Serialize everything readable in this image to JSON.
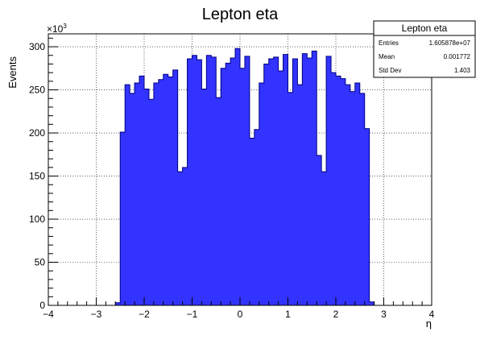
{
  "chart_data": {
    "type": "bar",
    "title": "Lepton eta",
    "xlabel": "η",
    "ylabel": "Events",
    "y_multiplier": "×10",
    "y_multiplier_exp": "3",
    "xlim": [
      -4,
      4
    ],
    "ylim": [
      0,
      315
    ],
    "x_ticks": [
      "−4",
      "−3",
      "−2",
      "−1",
      "0",
      "1",
      "2",
      "3",
      "4"
    ],
    "y_ticks": [
      "0",
      "50",
      "100",
      "150",
      "200",
      "250",
      "300"
    ],
    "grid": true,
    "fill_color": "#3333ff",
    "line_color": "#000080",
    "bins": {
      "x_low": -2.6,
      "bin_width": 0.1,
      "values": [
        3,
        201,
        256,
        246,
        258,
        266,
        251,
        239,
        258,
        262,
        268,
        265,
        273,
        155,
        160,
        286,
        290,
        285,
        251,
        290,
        288,
        241,
        275,
        281,
        287,
        298,
        275,
        289,
        194,
        204,
        258,
        280,
        286,
        288,
        272,
        291,
        247,
        286,
        256,
        292,
        287,
        295,
        174,
        155,
        289,
        270,
        266,
        263,
        256,
        248,
        258,
        246,
        205,
        4
      ]
    },
    "stats": {
      "title": "Lepton eta",
      "rows": [
        {
          "label": "Entries",
          "value": "1.605878e+07"
        },
        {
          "label": "Mean",
          "value": "0.001772"
        },
        {
          "label": "Std Dev",
          "value": "1.403"
        }
      ]
    }
  }
}
